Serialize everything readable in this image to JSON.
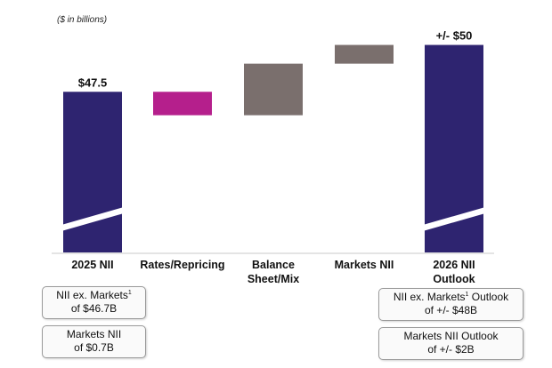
{
  "chart_data": {
    "type": "waterfall",
    "unit_note": "($ in billions)",
    "categories": [
      {
        "label_lines": [
          "2025 NII"
        ],
        "kind": "total",
        "value": 47.5,
        "value_label": "$47.5",
        "color": "#2e2470"
      },
      {
        "label_lines": [
          "Rates/Repricing"
        ],
        "kind": "delta",
        "start": 47.5,
        "end": 46.25,
        "color": "#b51f8c"
      },
      {
        "label_lines": [
          "Balance",
          "Sheet/Mix"
        ],
        "kind": "delta",
        "start": 46.25,
        "end": 49.0,
        "color": "#7a6f6d"
      },
      {
        "label_lines": [
          "Markets NII"
        ],
        "kind": "delta",
        "start": 49.0,
        "end": 50.0,
        "color": "#7a6f6d"
      },
      {
        "label_lines": [
          "2026 NII",
          "Outlook"
        ],
        "kind": "total",
        "value": 50,
        "value_label": "+/- $50",
        "color": "#2e2470"
      }
    ],
    "axis_break": true
  },
  "notes": {
    "left": [
      {
        "lines": [
          "NII ex. Markets",
          "of $46.7B"
        ],
        "sup": "1"
      },
      {
        "lines": [
          "Markets NII",
          "of $0.7B"
        ]
      }
    ],
    "right": [
      {
        "line1_pre": "NII ex. Markets",
        "sup": "1",
        "line1_post": " Outlook",
        "line2": "of +/- $48B"
      },
      {
        "lines": [
          "Markets NII Outlook",
          "of +/- $2B"
        ]
      }
    ]
  }
}
